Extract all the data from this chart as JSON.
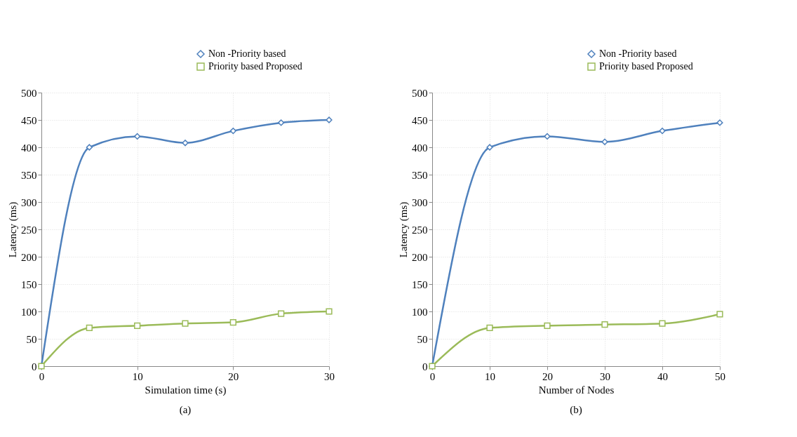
{
  "chart_data": [
    {
      "type": "line",
      "xlabel": "Simulation time (s)",
      "ylabel": "Latency (ms)",
      "annotations": [
        "(a)"
      ],
      "x": [
        0,
        5,
        10,
        15,
        20,
        25,
        30
      ],
      "xlim": [
        0,
        30
      ],
      "xticks": [
        0,
        10,
        20,
        30
      ],
      "ylim": [
        0,
        500
      ],
      "yticks": [
        0,
        50,
        100,
        150,
        200,
        250,
        300,
        350,
        400,
        450,
        500
      ],
      "grid": true,
      "legend": "top right",
      "series": [
        {
          "name": "Non -Priority based",
          "color": "#4f81bd",
          "marker": "diamond",
          "values": [
            0,
            400,
            420,
            408,
            430,
            445,
            450
          ]
        },
        {
          "name": "Priority based Proposed",
          "color": "#9bbb59",
          "marker": "square",
          "values": [
            0,
            70,
            74,
            78,
            80,
            96,
            100
          ]
        }
      ]
    },
    {
      "type": "line",
      "xlabel": "Number of Nodes",
      "ylabel": "Latency (ms)",
      "annotations": [
        "(b)"
      ],
      "x": [
        0,
        10,
        20,
        30,
        40,
        50
      ],
      "xlim": [
        0,
        50
      ],
      "xticks": [
        0,
        10,
        20,
        30,
        40,
        50
      ],
      "ylim": [
        0,
        500
      ],
      "yticks": [
        0,
        50,
        100,
        150,
        200,
        250,
        300,
        350,
        400,
        450,
        500
      ],
      "grid": true,
      "legend": "top right",
      "series": [
        {
          "name": "Non -Priority based",
          "color": "#4f81bd",
          "marker": "diamond",
          "values": [
            0,
            400,
            420,
            410,
            430,
            445
          ]
        },
        {
          "name": "Priority based Proposed",
          "color": "#9bbb59",
          "marker": "square",
          "values": [
            0,
            70,
            74,
            76,
            78,
            95
          ]
        }
      ]
    }
  ]
}
